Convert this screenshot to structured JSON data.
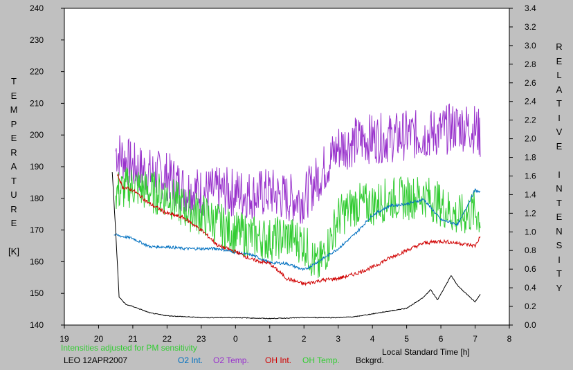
{
  "chart_data": {
    "type": "line",
    "title": "",
    "xlabel": "Local Standard Time [h]",
    "ylabel_left": "TEMPERATURE [K]",
    "ylabel_right": "RELATIVE INTENSITY",
    "xlim": [
      19,
      32
    ],
    "ylim_left": [
      140,
      240
    ],
    "ylim_right": [
      0.0,
      3.4
    ],
    "x_ticks": [
      "19",
      "20",
      "21",
      "22",
      "23",
      "0",
      "1",
      "2",
      "3",
      "4",
      "5",
      "6",
      "7",
      "8"
    ],
    "y_left_ticks": [
      "140",
      "150",
      "160",
      "170",
      "180",
      "190",
      "200",
      "210",
      "220",
      "230",
      "240"
    ],
    "y_right_ticks": [
      "0.0",
      "0.2",
      "0.4",
      "0.6",
      "0.8",
      "1.0",
      "1.2",
      "1.4",
      "1.6",
      "1.8",
      "2.0",
      "2.2",
      "2.4",
      "2.6",
      "2.8",
      "3.0",
      "3.2",
      "3.4"
    ],
    "annotation": "Intensities adjusted for PM sensitivity",
    "station": "LEO 12APR2007",
    "grid": false,
    "legend_position": "bottom",
    "series": [
      {
        "name": "O2 Int.",
        "axis": "right",
        "color": "#0070c0",
        "noise": 0.015,
        "x": [
          20.45,
          21.0,
          21.5,
          22.0,
          22.5,
          23.0,
          23.5,
          24.0,
          24.5,
          25.0,
          25.5,
          26.0,
          26.5,
          27.0,
          27.5,
          28.0,
          28.5,
          29.0,
          29.5,
          30.0,
          30.5,
          31.0,
          31.15
        ],
        "y": [
          0.97,
          0.93,
          0.84,
          0.84,
          0.82,
          0.82,
          0.82,
          0.78,
          0.75,
          0.67,
          0.66,
          0.59,
          0.7,
          0.82,
          0.98,
          1.18,
          1.28,
          1.3,
          1.35,
          1.13,
          1.08,
          1.45,
          1.42
        ]
      },
      {
        "name": "O2 Temp.",
        "axis": "left",
        "color": "#9933cc",
        "noise": 8,
        "x": [
          20.5,
          21.0,
          21.5,
          22.0,
          22.5,
          23.0,
          23.5,
          24.0,
          24.5,
          25.0,
          25.5,
          26.0,
          26.5,
          27.0,
          27.5,
          28.0,
          28.5,
          29.0,
          29.5,
          30.0,
          30.5,
          31.0,
          31.15
        ],
        "y": [
          195,
          190,
          188,
          187,
          183,
          182,
          182,
          182,
          181,
          182,
          180,
          180,
          188,
          196,
          198,
          199,
          199,
          200,
          200,
          201,
          203,
          202,
          200
        ]
      },
      {
        "name": "OH Int.",
        "axis": "right",
        "color": "#d00000",
        "noise": 0.02,
        "x": [
          20.55,
          20.7,
          21.0,
          21.5,
          22.0,
          22.5,
          23.0,
          23.5,
          24.0,
          24.5,
          25.0,
          25.5,
          26.0,
          26.5,
          27.0,
          27.5,
          28.0,
          28.5,
          29.0,
          29.5,
          30.0,
          30.5,
          31.0,
          31.15
        ],
        "y": [
          1.62,
          1.48,
          1.45,
          1.3,
          1.2,
          1.15,
          1.02,
          0.85,
          0.79,
          0.7,
          0.66,
          0.5,
          0.44,
          0.48,
          0.5,
          0.55,
          0.62,
          0.72,
          0.8,
          0.88,
          0.9,
          0.88,
          0.85,
          0.95
        ]
      },
      {
        "name": "OH Temp.",
        "axis": "left",
        "color": "#33cc33",
        "noise": 7,
        "x": [
          20.5,
          21.0,
          21.5,
          22.0,
          22.5,
          23.0,
          23.5,
          24.0,
          24.5,
          25.0,
          25.5,
          26.0,
          26.4,
          26.7,
          27.0,
          27.5,
          28.0,
          28.5,
          29.0,
          29.5,
          30.0,
          30.5,
          31.0,
          31.15
        ],
        "y": [
          182,
          184,
          182,
          181,
          177,
          175,
          172,
          169,
          168,
          167,
          168,
          166,
          158,
          165,
          174,
          178,
          178,
          180,
          180,
          181,
          178,
          174,
          176,
          174
        ]
      },
      {
        "name": "Bckgrd.",
        "axis": "right",
        "color": "#000000",
        "noise": 0.004,
        "x": [
          20.4,
          20.5,
          20.6,
          20.8,
          21.0,
          21.5,
          22.0,
          23.0,
          24.0,
          25.0,
          26.0,
          27.0,
          27.5,
          28.0,
          28.5,
          29.0,
          29.5,
          29.7,
          29.9,
          30.1,
          30.3,
          30.5,
          30.7,
          30.9,
          31.0,
          31.15
        ],
        "y": [
          1.64,
          1.0,
          0.3,
          0.22,
          0.2,
          0.13,
          0.1,
          0.08,
          0.08,
          0.07,
          0.08,
          0.08,
          0.09,
          0.12,
          0.15,
          0.18,
          0.3,
          0.38,
          0.27,
          0.4,
          0.53,
          0.42,
          0.35,
          0.28,
          0.25,
          0.33
        ]
      }
    ]
  }
}
